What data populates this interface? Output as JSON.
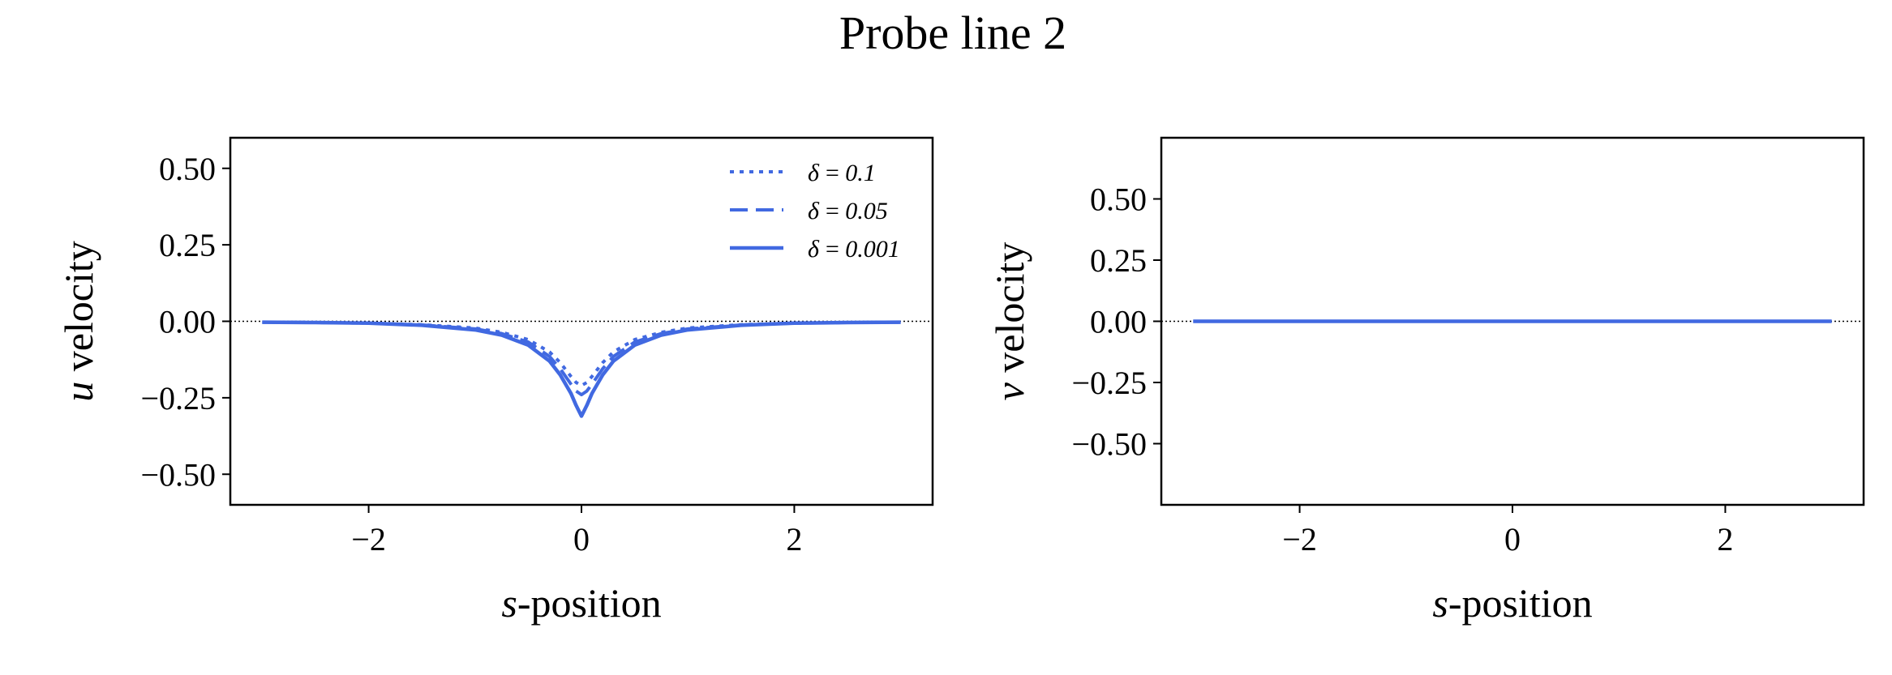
{
  "figure": {
    "title": "Probe line 2"
  },
  "colors": {
    "series": "#4169E1",
    "axis": "#000000",
    "zero_line": "#000000"
  },
  "chart_data": [
    {
      "type": "line",
      "xlabel_italic": "s",
      "xlabel_rest": "-position",
      "ylabel_italic": "u",
      "ylabel_rest": " velocity",
      "xlim": [
        -3.3,
        3.3
      ],
      "ylim": [
        -0.6,
        0.6
      ],
      "xticks": [
        -2,
        0,
        2
      ],
      "xtick_labels": [
        "−2",
        "0",
        "2"
      ],
      "yticks": [
        0.5,
        0.25,
        0,
        -0.25,
        -0.5
      ],
      "ytick_labels": [
        "0.50",
        "0.25",
        "0.00",
        "−0.25",
        "−0.50"
      ],
      "zero_line": true,
      "legend": "top-right",
      "x": [
        -3,
        -2.5,
        -2,
        -1.5,
        -1,
        -0.75,
        -0.5,
        -0.3,
        -0.2,
        -0.1,
        -0.05,
        0,
        0.05,
        0.1,
        0.2,
        0.3,
        0.5,
        0.75,
        1,
        1.5,
        2,
        2.5,
        3
      ],
      "series": [
        {
          "name": "δ = 0.1",
          "style": "dotted",
          "values": [
            -0.003,
            -0.004,
            -0.006,
            -0.011,
            -0.022,
            -0.036,
            -0.06,
            -0.1,
            -0.135,
            -0.18,
            -0.2,
            -0.21,
            -0.2,
            -0.18,
            -0.135,
            -0.1,
            -0.06,
            -0.036,
            -0.022,
            -0.011,
            -0.006,
            -0.004,
            -0.003
          ]
        },
        {
          "name": "δ = 0.05",
          "style": "dashed",
          "values": [
            -0.003,
            -0.004,
            -0.006,
            -0.012,
            -0.025,
            -0.04,
            -0.068,
            -0.115,
            -0.155,
            -0.205,
            -0.228,
            -0.24,
            -0.228,
            -0.205,
            -0.155,
            -0.115,
            -0.068,
            -0.04,
            -0.025,
            -0.012,
            -0.006,
            -0.004,
            -0.003
          ]
        },
        {
          "name": "δ = 0.001",
          "style": "solid",
          "values": [
            -0.003,
            -0.004,
            -0.006,
            -0.013,
            -0.028,
            -0.045,
            -0.078,
            -0.13,
            -0.175,
            -0.235,
            -0.275,
            -0.31,
            -0.275,
            -0.235,
            -0.175,
            -0.13,
            -0.078,
            -0.045,
            -0.028,
            -0.013,
            -0.006,
            -0.004,
            -0.003
          ]
        }
      ]
    },
    {
      "type": "line",
      "xlabel_italic": "s",
      "xlabel_rest": "-position",
      "ylabel_italic": "v",
      "ylabel_rest": " velocity",
      "xlim": [
        -3.3,
        3.3
      ],
      "ylim": [
        -0.75,
        0.75
      ],
      "xticks": [
        -2,
        0,
        2
      ],
      "xtick_labels": [
        "−2",
        "0",
        "2"
      ],
      "yticks": [
        0.5,
        0.25,
        0,
        -0.25,
        -0.5
      ],
      "ytick_labels": [
        "0.50",
        "0.25",
        "0.00",
        "−0.25",
        "−0.50"
      ],
      "zero_line": true,
      "x": [
        -3,
        3
      ],
      "series": [
        {
          "style": "dotted",
          "values": [
            0,
            0
          ]
        },
        {
          "style": "dashed",
          "values": [
            0,
            0
          ]
        },
        {
          "style": "solid",
          "values": [
            0,
            0
          ]
        }
      ]
    }
  ]
}
